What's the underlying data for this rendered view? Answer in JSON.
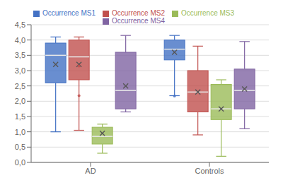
{
  "chart_data": {
    "type": "box",
    "categories": [
      "AD",
      "Controls"
    ],
    "series": [
      {
        "name": "Occurrence MS1",
        "color": "#4472C4",
        "whisker_low": [
          1.0,
          2.18
        ],
        "q1": [
          2.6,
          3.35
        ],
        "median": [
          3.5,
          3.7
        ],
        "q3": [
          3.9,
          4.0
        ],
        "whisker_high": [
          4.1,
          4.15
        ],
        "mean": [
          3.2,
          3.6
        ],
        "outliers": [
          [],
          [
            2.17
          ]
        ]
      },
      {
        "name": "Occurrence MS2",
        "color": "#C0504D",
        "whisker_low": [
          1.05,
          0.9
        ],
        "q1": [
          2.7,
          1.65
        ],
        "median": [
          3.45,
          2.3
        ],
        "q3": [
          4.0,
          3.0
        ],
        "whisker_high": [
          4.1,
          3.8
        ],
        "mean": [
          3.2,
          2.3
        ],
        "outliers": [
          [
            3.15,
            2.18
          ],
          []
        ]
      },
      {
        "name": "Occurrence MS3",
        "color": "#9BBB59",
        "whisker_low": [
          0.3,
          0.2
        ],
        "q1": [
          0.6,
          1.4
        ],
        "median": [
          0.85,
          1.75
        ],
        "q3": [
          1.15,
          2.55
        ],
        "whisker_high": [
          1.25,
          2.7
        ],
        "mean": [
          0.95,
          1.75
        ],
        "outliers": [
          [],
          []
        ]
      },
      {
        "name": "Occurrence MS4",
        "color": "#8064A2",
        "whisker_low": [
          1.65,
          1.1
        ],
        "q1": [
          1.75,
          1.75
        ],
        "median": [
          2.35,
          2.35
        ],
        "q3": [
          3.6,
          3.05
        ],
        "whisker_high": [
          4.15,
          3.95
        ],
        "mean": [
          2.5,
          2.4
        ],
        "outliers": [
          [],
          []
        ]
      }
    ],
    "ylim": [
      0.0,
      4.5
    ],
    "yticks": [
      {
        "value": 0.0,
        "label": "0,0"
      },
      {
        "value": 0.5,
        "label": "0,5"
      },
      {
        "value": 1.0,
        "label": "1,0"
      },
      {
        "value": 1.5,
        "label": "1,5"
      },
      {
        "value": 2.0,
        "label": "2,0"
      },
      {
        "value": 2.5,
        "label": "2,5"
      },
      {
        "value": 3.0,
        "label": "3,0"
      },
      {
        "value": 3.5,
        "label": "3,5"
      },
      {
        "value": 4.0,
        "label": "4,0"
      },
      {
        "value": 4.5,
        "label": "4,5"
      }
    ],
    "grid": true,
    "legend": "top"
  }
}
